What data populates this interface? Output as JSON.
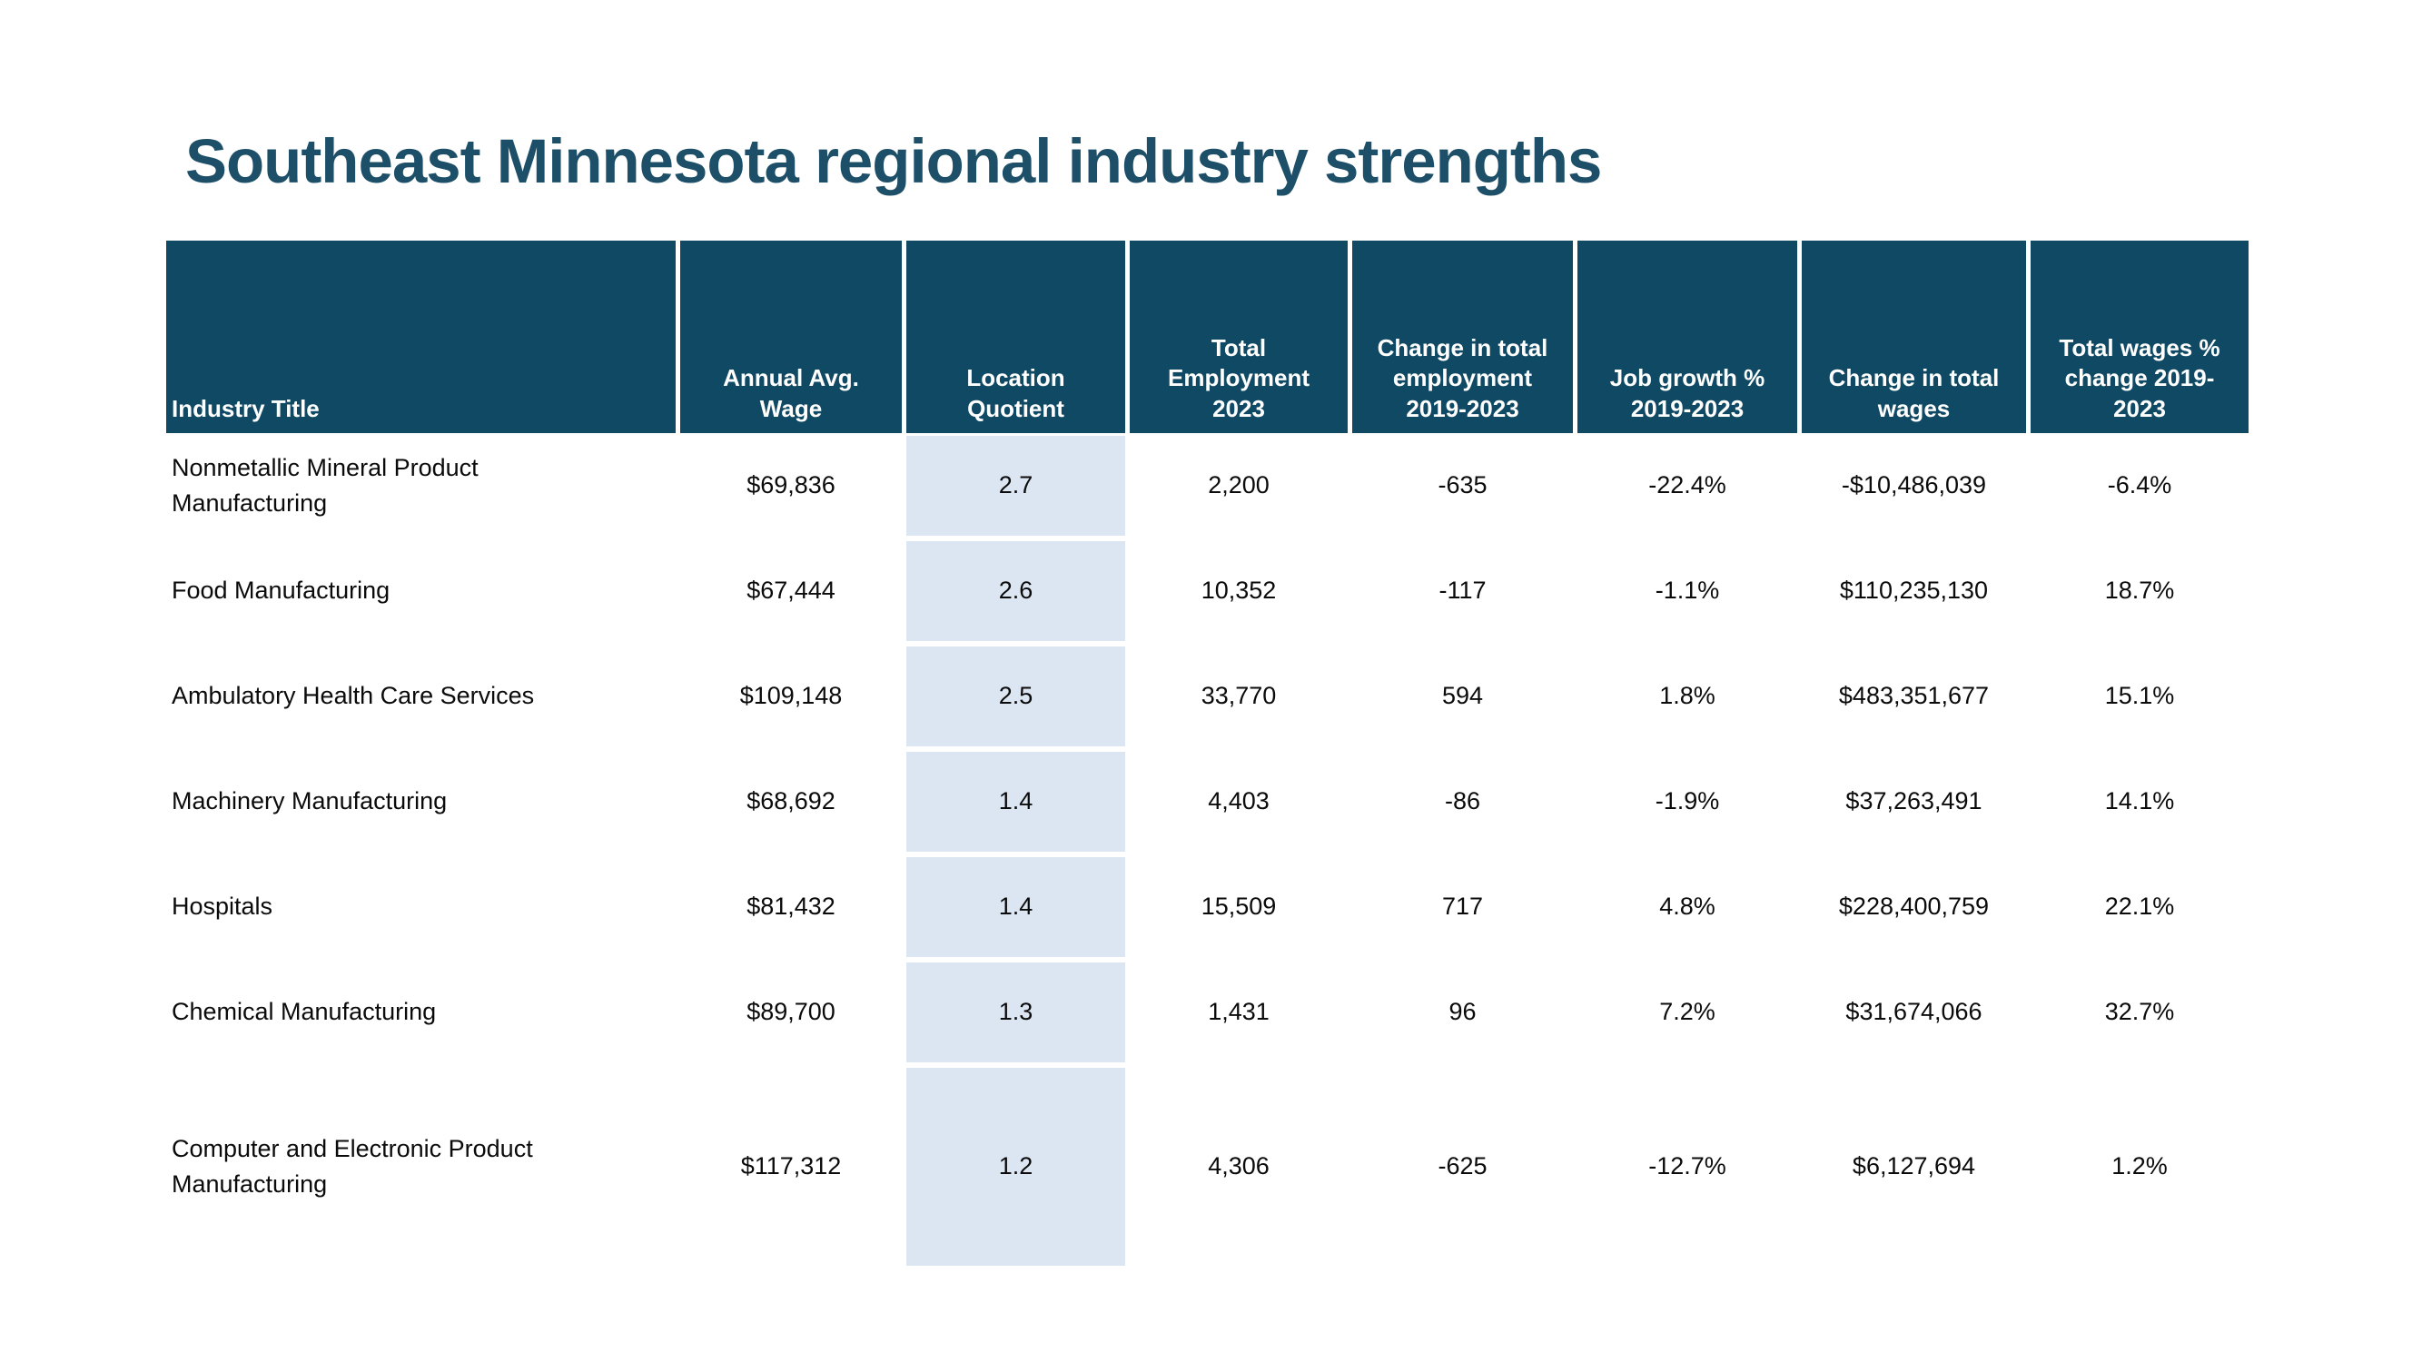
{
  "page": {
    "title": "Southeast Minnesota regional industry strengths"
  },
  "colors": {
    "title_text": "#1D4F68",
    "header_bg": "#0F4963",
    "header_text": "#FFFFFF",
    "highlight_cell_bg": "#DCE6F2",
    "body_text": "#0B0B0B",
    "page_bg": "#FFFFFF"
  },
  "chart_data": {
    "type": "table",
    "title": "Southeast Minnesota regional industry strengths",
    "columns": [
      "Industry Title",
      "Annual Avg. Wage",
      "Location Quotient",
      "Total Employment 2023",
      "Change in total employment 2019-2023",
      "Job growth % 2019-2023",
      "Change in total wages",
      "Total wages % change 2019-2023"
    ],
    "rows": [
      [
        "Nonmetallic Mineral Product Manufacturing",
        "$69,836",
        "2.7",
        "2,200",
        "-635",
        "-22.4%",
        "-$10,486,039",
        "-6.4%"
      ],
      [
        "Food Manufacturing",
        "$67,444",
        "2.6",
        "10,352",
        "-117",
        "-1.1%",
        "$110,235,130",
        "18.7%"
      ],
      [
        "Ambulatory Health Care Services",
        "$109,148",
        "2.5",
        "33,770",
        "594",
        "1.8%",
        "$483,351,677",
        "15.1%"
      ],
      [
        "Machinery Manufacturing",
        "$68,692",
        "1.4",
        "4,403",
        "-86",
        "-1.9%",
        "$37,263,491",
        "14.1%"
      ],
      [
        "Hospitals",
        "$81,432",
        "1.4",
        "15,509",
        "717",
        "4.8%",
        "$228,400,759",
        "22.1%"
      ],
      [
        "Chemical Manufacturing",
        "$89,700",
        "1.3",
        "1,431",
        "96",
        "7.2%",
        "$31,674,066",
        "32.7%"
      ],
      [
        "Computer and Electronic Product Manufacturing",
        "$117,312",
        "1.2",
        "4,306",
        "-625",
        "-12.7%",
        "$6,127,694",
        "1.2%"
      ]
    ],
    "highlighted_column": "Location Quotient",
    "layout": {
      "legend": "none",
      "grid": "off",
      "header_position": "top",
      "highlight_column_index": 2
    }
  }
}
